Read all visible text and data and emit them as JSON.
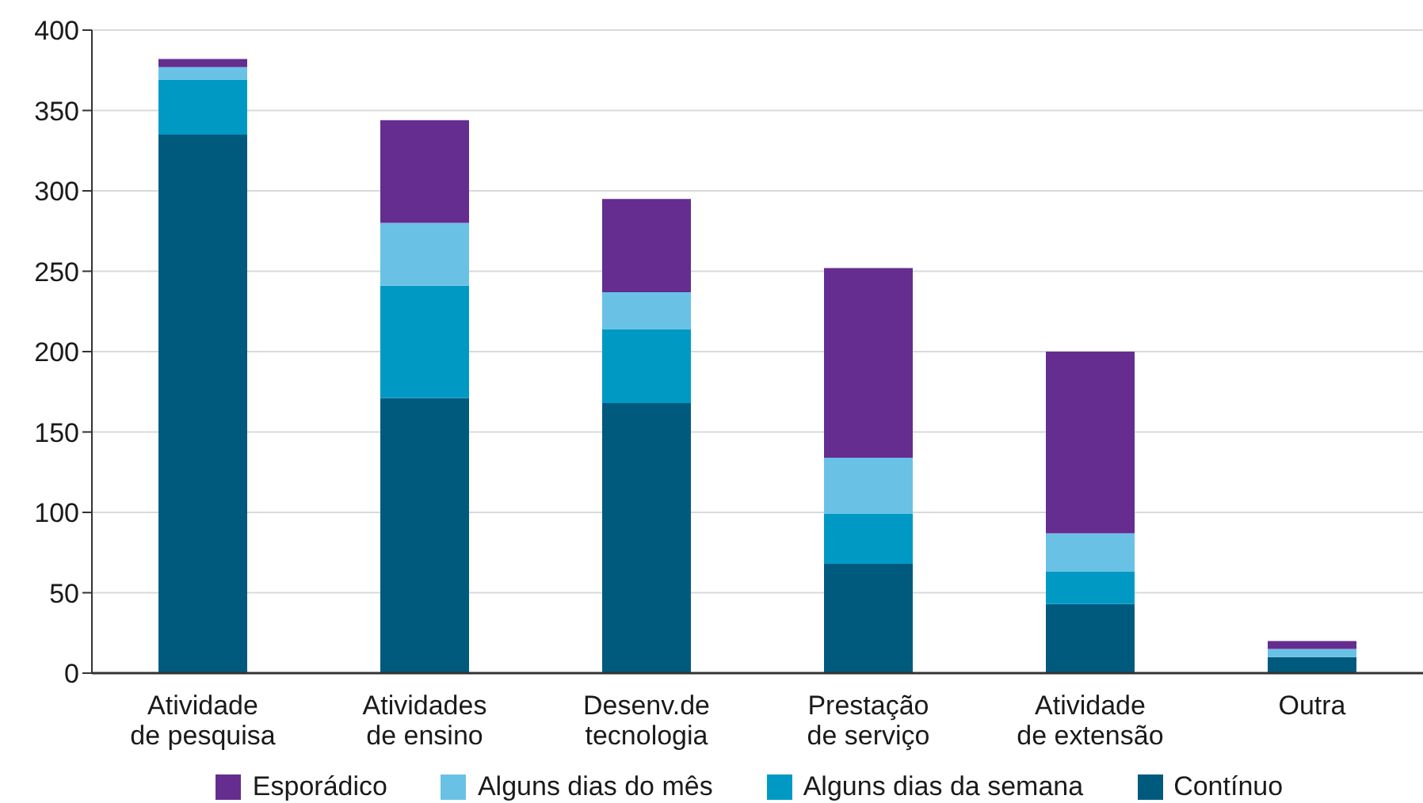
{
  "chart_data": {
    "type": "bar",
    "stacked": true,
    "categories": [
      "Atividade de pesquisa",
      "Atividades de ensino",
      "Desenv.de tecnologia",
      "Prestação de serviço",
      "Atividade de extensão",
      "Outra"
    ],
    "series": [
      {
        "name": "Contínuo",
        "color": "#005a7e",
        "values": [
          335,
          171,
          168,
          68,
          43,
          10
        ]
      },
      {
        "name": "Alguns dias da semana",
        "color": "#0099c4",
        "values": [
          34,
          70,
          46,
          31,
          20,
          0
        ]
      },
      {
        "name": "Alguns dias do mês",
        "color": "#69c2e5",
        "values": [
          8,
          39,
          23,
          35,
          24,
          5
        ]
      },
      {
        "name": "Esporádico",
        "color": "#642d8f",
        "values": [
          5,
          64,
          58,
          118,
          113,
          5
        ]
      }
    ],
    "ylim": [
      0,
      400
    ],
    "yticks": [
      0,
      50,
      100,
      150,
      200,
      250,
      300,
      350,
      400
    ],
    "grid": "y",
    "legend": "bottom"
  }
}
